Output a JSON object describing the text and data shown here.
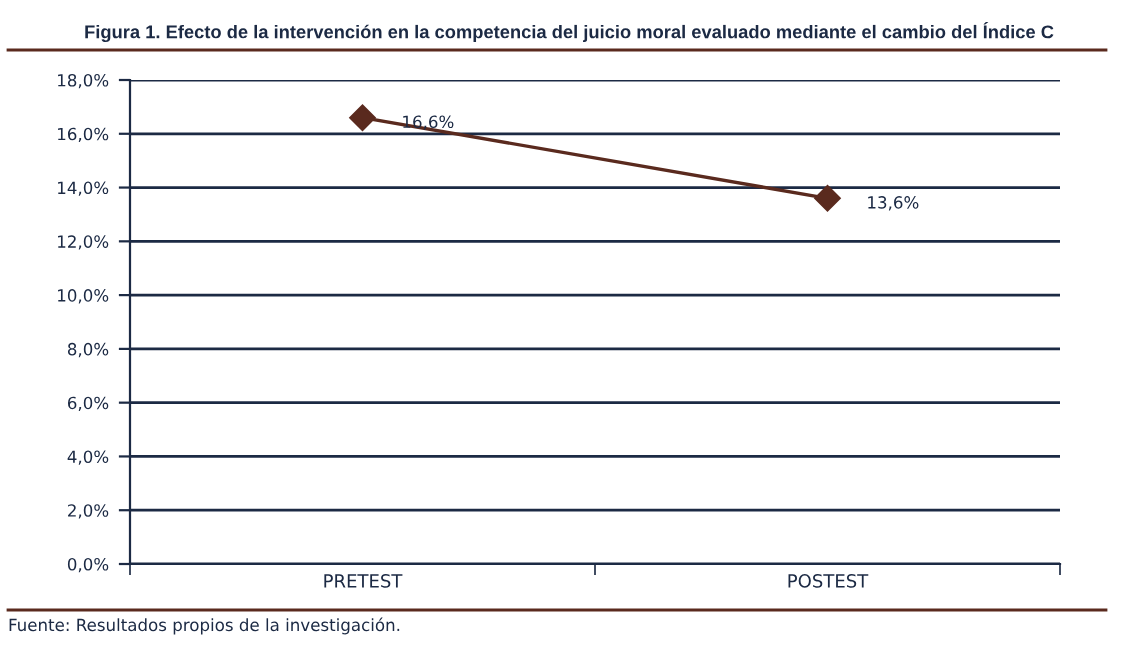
{
  "chart_data": {
    "type": "line",
    "title": "Figura 1. Efecto de la intervención en la competencia del juicio moral evaluado mediante el cambio del Índice C",
    "categories": [
      "PRETEST",
      "POSTEST"
    ],
    "series": [
      {
        "color": "#5a2a1e",
        "values": [
          16.6,
          13.6
        ],
        "value_labels": [
          "16,6%",
          "13,6%"
        ]
      }
    ],
    "ylim": [
      0,
      18
    ],
    "yticks": [
      {
        "value": 0,
        "label": "0,0%"
      },
      {
        "value": 2,
        "label": "2,0%"
      },
      {
        "value": 4,
        "label": "4,0%"
      },
      {
        "value": 6,
        "label": "6,0%"
      },
      {
        "value": 8,
        "label": "8,0%"
      },
      {
        "value": 10,
        "label": "10,0%"
      },
      {
        "value": 12,
        "label": "12,0%"
      },
      {
        "value": 14,
        "label": "14,0%"
      },
      {
        "value": 16,
        "label": "16,0%"
      },
      {
        "value": 18,
        "label": "18,0%"
      }
    ],
    "grid": "y",
    "marker": "diamond",
    "line_style": "solid",
    "legend": false,
    "annotations": [
      "Fuente: Resultados propios de la investigación."
    ]
  }
}
